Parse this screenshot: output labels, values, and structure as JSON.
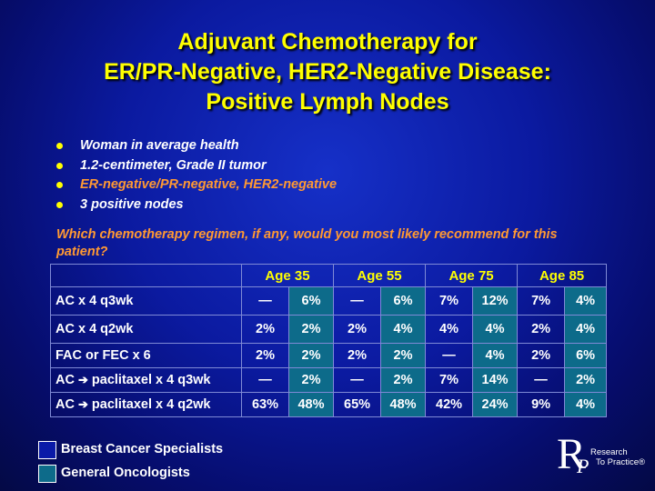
{
  "title_lines": [
    "Adjuvant Chemotherapy for",
    "ER/PR-Negative, HER2-Negative Disease:",
    "Positive Lymph Nodes"
  ],
  "bullets": [
    {
      "text": "Woman in average health",
      "highlight": false
    },
    {
      "text": "1.2-centimeter, Grade II tumor",
      "highlight": false
    },
    {
      "text": "ER-negative/PR-negative, HER2-negative",
      "highlight": true
    },
    {
      "text": "3 positive nodes",
      "highlight": false
    }
  ],
  "question": "Which chemotherapy regimen, if any, would you most likely recommend for this patient?",
  "table": {
    "age_headers": [
      "Age 35",
      "Age 55",
      "Age 75",
      "Age 85"
    ],
    "rows": [
      {
        "regimen": "AC x 4 q3wk",
        "values": [
          "—",
          "6%",
          "—",
          "6%",
          "7%",
          "12%",
          "7%",
          "4%"
        ]
      },
      {
        "regimen": "AC x 4 q2wk",
        "values": [
          "2%",
          "2%",
          "2%",
          "4%",
          "4%",
          "4%",
          "2%",
          "4%"
        ]
      },
      {
        "regimen": "FAC or FEC x 6",
        "values": [
          "2%",
          "2%",
          "2%",
          "2%",
          "—",
          "4%",
          "2%",
          "6%"
        ]
      },
      {
        "regimen_pre": "AC",
        "regimen_post": "paclitaxel x 4 q3wk",
        "values": [
          "—",
          "2%",
          "—",
          "2%",
          "7%",
          "14%",
          "—",
          "2%"
        ]
      },
      {
        "regimen_pre": "AC",
        "regimen_post": "paclitaxel x 4 q2wk",
        "values": [
          "63%",
          "48%",
          "65%",
          "48%",
          "42%",
          "24%",
          "9%",
          "4%"
        ]
      }
    ]
  },
  "legend": [
    {
      "label": "Breast Cancer Specialists",
      "color": "#0a1aa8"
    },
    {
      "label": "General Oncologists",
      "color": "#0d6b8a"
    }
  ],
  "logo": {
    "letter_r": "R",
    "letter_p": "P",
    "line1": "Research",
    "line2": "To Practice®"
  },
  "colors": {
    "title": "#ffff00",
    "highlight": "#ff9933",
    "general_oncologists_cell": "#0d6b8a"
  }
}
